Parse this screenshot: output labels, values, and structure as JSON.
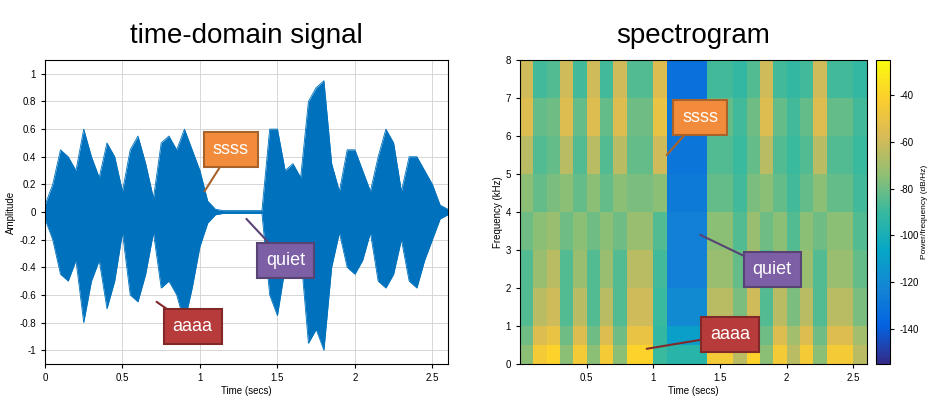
{
  "chart_data": [
    {
      "type": "area",
      "title": "time-domain signal",
      "x_label": "Time (secs)",
      "y_label": "Amplitude",
      "color": "#0072bd",
      "grid": true,
      "xlim": [
        0,
        2.6
      ],
      "xticks": [
        0,
        0.5,
        1,
        1.5,
        2,
        2.5
      ],
      "ylim": [
        -1.1,
        1.1
      ],
      "yticks": [
        -1,
        -0.8,
        -0.6,
        -0.4,
        -0.2,
        0,
        0.2,
        0.4,
        0.6,
        0.8,
        1
      ],
      "x": [
        0,
        0.05,
        0.1,
        0.15,
        0.2,
        0.25,
        0.3,
        0.35,
        0.4,
        0.45,
        0.5,
        0.55,
        0.6,
        0.65,
        0.7,
        0.75,
        0.8,
        0.85,
        0.9,
        0.95,
        1.0,
        1.05,
        1.1,
        1.15,
        1.2,
        1.25,
        1.3,
        1.35,
        1.4,
        1.45,
        1.5,
        1.55,
        1.6,
        1.65,
        1.7,
        1.75,
        1.8,
        1.85,
        1.9,
        1.95,
        2.0,
        2.05,
        2.1,
        2.15,
        2.2,
        2.25,
        2.3,
        2.35,
        2.4,
        2.45,
        2.5,
        2.55,
        2.6
      ],
      "upper": [
        0.05,
        0.2,
        0.45,
        0.4,
        0.3,
        0.6,
        0.4,
        0.25,
        0.5,
        0.4,
        0.15,
        0.45,
        0.55,
        0.35,
        0.1,
        0.5,
        0.55,
        0.45,
        0.6,
        0.45,
        0.3,
        0.08,
        0.02,
        0.01,
        0.01,
        0.01,
        0.01,
        0.01,
        0.01,
        0.6,
        0.6,
        0.3,
        0.35,
        0.25,
        0.8,
        0.9,
        0.95,
        0.35,
        0.15,
        0.45,
        0.45,
        0.3,
        0.15,
        0.4,
        0.6,
        0.5,
        0.15,
        0.4,
        0.4,
        0.3,
        0.2,
        0.05,
        0.02
      ],
      "lower": [
        -0.05,
        -0.2,
        -0.45,
        -0.5,
        -0.35,
        -0.8,
        -0.5,
        -0.35,
        -0.7,
        -0.5,
        -0.15,
        -0.6,
        -0.65,
        -0.45,
        -0.15,
        -0.55,
        -0.5,
        -0.6,
        -0.8,
        -0.55,
        -0.25,
        -0.08,
        -0.02,
        -0.01,
        -0.01,
        -0.01,
        -0.01,
        -0.01,
        -0.01,
        -0.6,
        -0.75,
        -0.4,
        -0.35,
        -0.3,
        -0.95,
        -0.85,
        -1.0,
        -0.4,
        -0.15,
        -0.4,
        -0.45,
        -0.35,
        -0.15,
        -0.5,
        -0.55,
        -0.45,
        -0.2,
        -0.5,
        -0.55,
        -0.35,
        -0.2,
        -0.05,
        -0.02
      ],
      "annotations": [
        {
          "text": "ssss",
          "x": 1.03,
          "y": 0.15,
          "color": "#f28c3c"
        },
        {
          "text": "quiet",
          "x": 1.3,
          "y": -0.05,
          "color": "#7d5fa6"
        },
        {
          "text": "aaaa",
          "x": 0.72,
          "y": -0.65,
          "color": "#b83b3b"
        }
      ]
    },
    {
      "type": "heatmap",
      "title": "spectrogram",
      "x_label": "Time (secs)",
      "y_label": "Frequency (kHz)",
      "grid": false,
      "xlim": [
        0,
        2.6
      ],
      "xticks": [
        0.5,
        1,
        1.5,
        2,
        2.5
      ],
      "ylim": [
        0,
        8
      ],
      "yticks": [
        0,
        1,
        2,
        3,
        4,
        5,
        6,
        7,
        8
      ],
      "time_edges": [
        0,
        0.1,
        0.2,
        0.3,
        0.4,
        0.5,
        0.6,
        0.7,
        0.8,
        0.9,
        1.0,
        1.1,
        1.2,
        1.3,
        1.4,
        1.5,
        1.6,
        1.7,
        1.8,
        1.9,
        2.0,
        2.1,
        2.2,
        2.3,
        2.4,
        2.5,
        2.6
      ],
      "freq_edges": [
        0,
        0.5,
        1,
        2,
        3,
        4,
        5,
        6,
        7,
        8
      ],
      "power": [
        [
          -75,
          -45,
          -40,
          -75,
          -45,
          -75,
          -45,
          -75,
          -40,
          -40,
          -90,
          -95,
          -95,
          -95,
          -45,
          -45,
          -65,
          -40,
          -75,
          -45,
          -65,
          -45,
          -75,
          -45,
          -45,
          -65
        ],
        [
          -80,
          -55,
          -50,
          -80,
          -55,
          -80,
          -55,
          -80,
          -50,
          -50,
          -92,
          -110,
          -110,
          -110,
          -55,
          -55,
          -70,
          -50,
          -80,
          -55,
          -70,
          -55,
          -80,
          -55,
          -55,
          -70
        ],
        [
          -85,
          -65,
          -60,
          -85,
          -65,
          -85,
          -65,
          -85,
          -60,
          -60,
          -90,
          -120,
          -120,
          -120,
          -65,
          -65,
          -78,
          -60,
          -85,
          -65,
          -78,
          -65,
          -85,
          -65,
          -65,
          -78
        ],
        [
          -85,
          -72,
          -65,
          -85,
          -72,
          -85,
          -72,
          -85,
          -65,
          -65,
          -88,
          -125,
          -125,
          -125,
          -72,
          -72,
          -82,
          -65,
          -85,
          -72,
          -82,
          -72,
          -85,
          -72,
          -72,
          -82
        ],
        [
          -80,
          -75,
          -72,
          -80,
          -75,
          -80,
          -75,
          -80,
          -72,
          -72,
          -85,
          -125,
          -125,
          -125,
          -75,
          -75,
          -85,
          -72,
          -80,
          -75,
          -85,
          -75,
          -80,
          -75,
          -75,
          -85
        ],
        [
          -75,
          -82,
          -78,
          -75,
          -82,
          -75,
          -82,
          -75,
          -78,
          -78,
          -75,
          -128,
          -128,
          -128,
          -82,
          -82,
          -88,
          -78,
          -75,
          -82,
          -88,
          -82,
          -75,
          -82,
          -82,
          -88
        ],
        [
          -65,
          -85,
          -82,
          -65,
          -85,
          -65,
          -85,
          -65,
          -82,
          -82,
          -60,
          -130,
          -130,
          -130,
          -85,
          -85,
          -90,
          -82,
          -65,
          -85,
          -90,
          -85,
          -65,
          -85,
          -85,
          -90
        ],
        [
          -55,
          -82,
          -80,
          -55,
          -82,
          -55,
          -82,
          -55,
          -80,
          -80,
          -50,
          -130,
          -130,
          -130,
          -82,
          -82,
          -88,
          -80,
          -55,
          -82,
          -88,
          -82,
          -55,
          -82,
          -82,
          -88
        ],
        [
          -60,
          -88,
          -85,
          -60,
          -88,
          -60,
          -88,
          -60,
          -85,
          -85,
          -55,
          -132,
          -132,
          -132,
          -88,
          -88,
          -92,
          -85,
          -60,
          -88,
          -92,
          -88,
          -60,
          -88,
          -88,
          -92
        ]
      ],
      "colorbar": {
        "label": "Power/frequency (dB/Hz)",
        "range": [
          -155,
          -25
        ],
        "ticks": [
          -40,
          -60,
          -80,
          -100,
          -120,
          -140
        ]
      },
      "annotations": [
        {
          "text": "ssss",
          "x": 1.1,
          "y": 5.5,
          "color": "#f28c3c"
        },
        {
          "text": "quiet",
          "x": 1.35,
          "y": 3.4,
          "color": "#7d5fa6"
        },
        {
          "text": "aaaa",
          "x": 0.95,
          "y": 0.4,
          "color": "#b83b3b"
        }
      ]
    }
  ]
}
